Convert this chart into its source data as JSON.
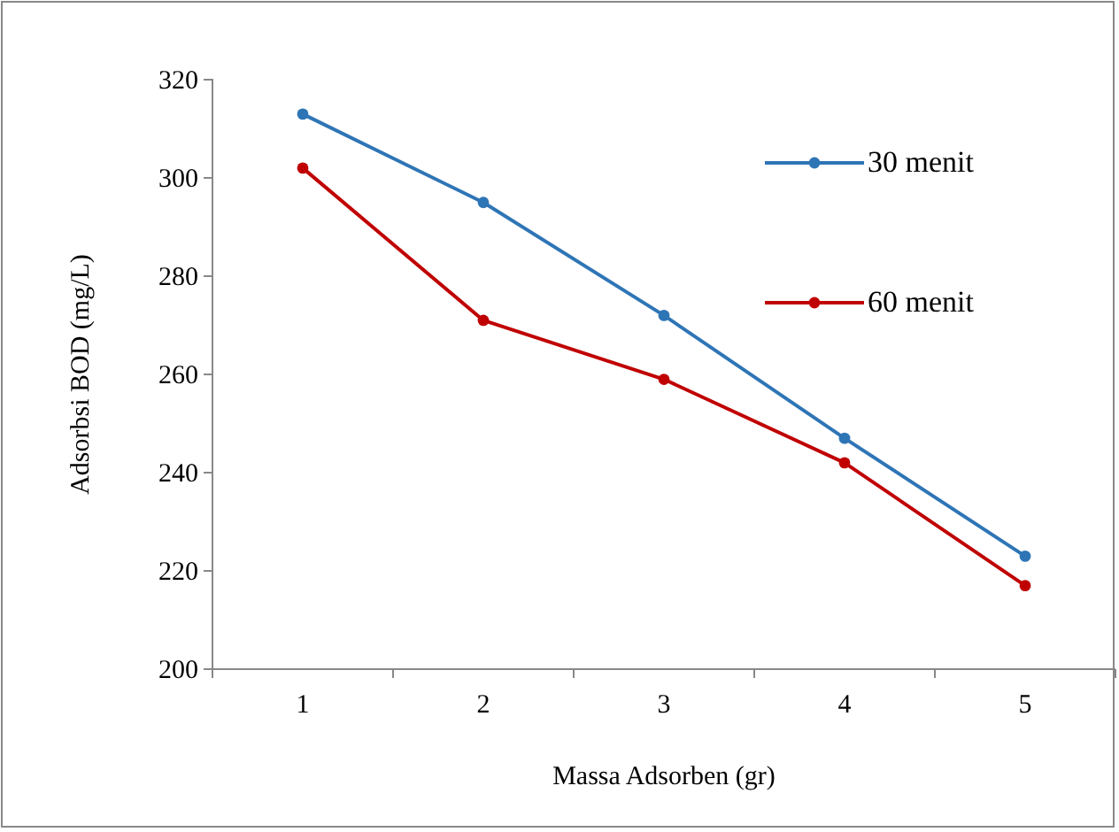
{
  "chart_data": {
    "type": "line",
    "xlabel": "Massa Adsorben (gr)",
    "ylabel": "Adsorbsi BOD (mg/L)",
    "categories": [
      "1",
      "2",
      "3",
      "4",
      "5"
    ],
    "series": [
      {
        "name": "30 menit",
        "color": "#2e75b6",
        "values": [
          313,
          295,
          272,
          247,
          223
        ]
      },
      {
        "name": "60 menit",
        "color": "#c00000",
        "values": [
          302,
          271,
          259,
          242,
          217
        ]
      }
    ],
    "ylim": [
      200,
      320
    ],
    "yticks": [
      200,
      220,
      240,
      260,
      280,
      300,
      320
    ],
    "marker": "circle",
    "legend": "top right"
  }
}
